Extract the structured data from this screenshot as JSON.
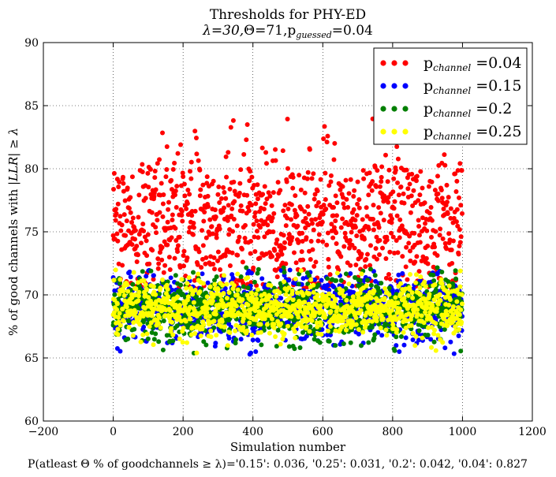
{
  "chart_data": {
    "type": "scatter",
    "title": "Thresholds for PHY-ED",
    "subtitle": {
      "lambda": "λ=30,",
      "theta": "Θ=71,",
      "p_prefix": "p",
      "p_sub": "guessed",
      "p_suffix": "=0.04"
    },
    "xlabel": "Simulation number",
    "ylabel": {
      "prefix": "% of good channels with ",
      "math": "|LLR| ≥ λ"
    },
    "footnote": "P(atleast Θ % of goodchannels ≥ λ)='0.15': 0.036, '0.25': 0.031, '0.2': 0.042, '0.04': 0.827",
    "xlim": [
      -200,
      1200
    ],
    "ylim": [
      60,
      90
    ],
    "xticks": [
      "−200",
      "0",
      "200",
      "400",
      "600",
      "800",
      "1000",
      "1200"
    ],
    "xtick_values": [
      -200,
      0,
      200,
      400,
      600,
      800,
      1000,
      1200
    ],
    "yticks": [
      "60",
      "65",
      "70",
      "75",
      "80",
      "85",
      "90"
    ],
    "ytick_values": [
      60,
      65,
      70,
      75,
      80,
      85,
      90
    ],
    "grid": true,
    "legend_position": "top-right",
    "n_points_per_series": 1000,
    "series": [
      {
        "name_prefix": "p",
        "name_sub": "channel",
        "name_suffix": " =0.04",
        "color": "#ff0000",
        "mean": 75.6,
        "std": 2.9,
        "min": 70.5,
        "max": 84.2
      },
      {
        "name_prefix": "p",
        "name_sub": "channel",
        "name_suffix": " =0.15",
        "color": "#0000ff",
        "mean": 68.9,
        "std": 1.3,
        "min": 65.2,
        "max": 72.0
      },
      {
        "name_prefix": "p",
        "name_sub": "channel",
        "name_suffix": " =0.2",
        "color": "#007f00",
        "mean": 68.9,
        "std": 1.2,
        "min": 65.3,
        "max": 72.2
      },
      {
        "name_prefix": "p",
        "name_sub": "channel",
        "name_suffix": " =0.25",
        "color": "#ffff00",
        "mean": 68.9,
        "std": 1.1,
        "min": 65.3,
        "max": 72.0
      }
    ]
  }
}
